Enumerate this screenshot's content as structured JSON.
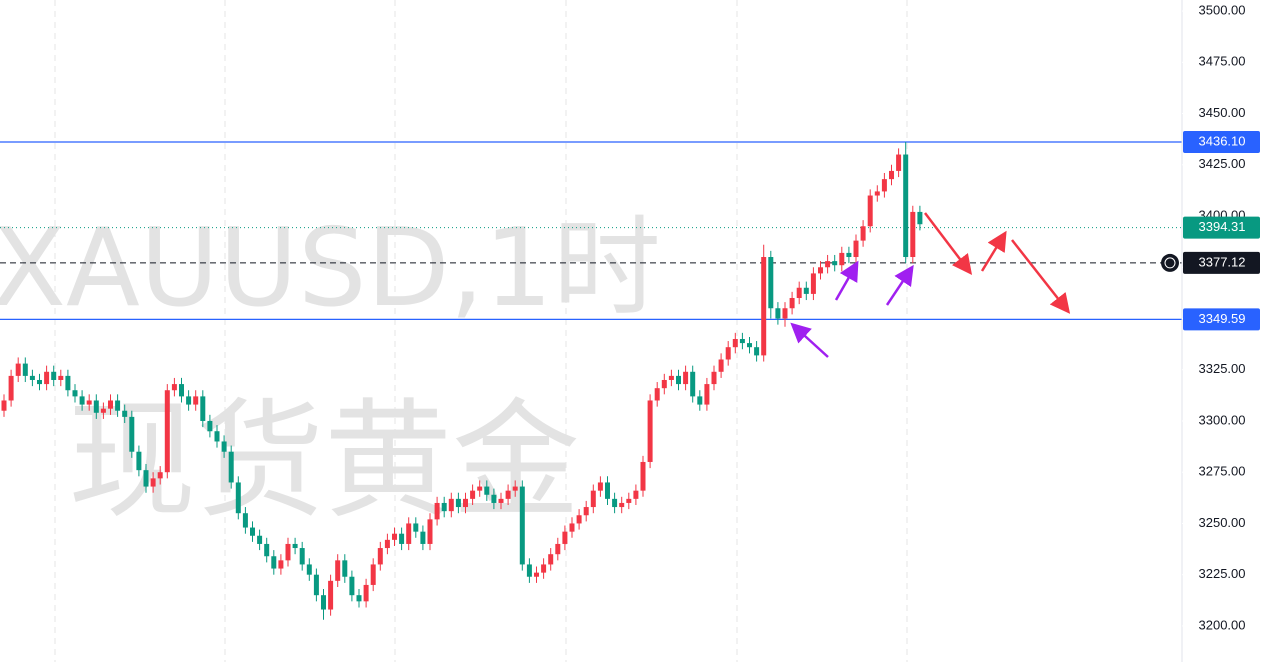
{
  "chart_data": {
    "type": "candlestick",
    "watermark": "XAUUSD,1时",
    "watermark_subtitle": "现货黄金",
    "up_color": "#f23645",
    "down_color": "#089981",
    "ylim": [
      3182.4,
      3505.4
    ],
    "yticks": [
      {
        "value": 3200,
        "label": "3200.00"
      },
      {
        "value": 3225,
        "label": "3225.00"
      },
      {
        "value": 3250,
        "label": "3250.00"
      },
      {
        "value": 3275,
        "label": "3275.00"
      },
      {
        "value": 3300,
        "label": "3300.00"
      },
      {
        "value": 3325,
        "label": "3325.00"
      },
      {
        "value": 3350,
        "label": "3350.00"
      },
      {
        "value": 3375,
        "label": "3375.00"
      },
      {
        "value": 3400,
        "label": "3400.00"
      },
      {
        "value": 3425,
        "label": "3425.00"
      },
      {
        "value": 3450,
        "label": "3450.00"
      },
      {
        "value": 3475,
        "label": "3475.00"
      },
      {
        "value": 3500,
        "label": "3500.00"
      }
    ],
    "grid": false,
    "price_lines": [
      {
        "value": 3436.1,
        "label": "3436.10",
        "color": "#2962ff",
        "style": "solid"
      },
      {
        "value": 3394.31,
        "label": "3394.31",
        "color": "#089981",
        "style": "dotted"
      },
      {
        "value": 3377.12,
        "label": "3377.12",
        "color": "#131722",
        "style": "dashed"
      },
      {
        "value": 3349.59,
        "label": "3349.59",
        "color": "#2962ff",
        "style": "solid"
      }
    ],
    "open": [
      3305,
      3310,
      3322,
      3328,
      3322,
      3320,
      3318,
      3324,
      3320,
      3322,
      3315,
      3312,
      3308,
      3310,
      3304,
      3306,
      3310,
      3305,
      3302,
      3285,
      3276,
      3268,
      3272,
      3275,
      3315,
      3318,
      3312,
      3308,
      3312,
      3300,
      3295,
      3290,
      3285,
      3270,
      3255,
      3248,
      3244,
      3240,
      3234,
      3228,
      3232,
      3240,
      3238,
      3230,
      3225,
      3215,
      3208,
      3222,
      3232,
      3224,
      3215,
      3212,
      3220,
      3230,
      3238,
      3242,
      3245,
      3240,
      3250,
      3246,
      3240,
      3252,
      3260,
      3256,
      3262,
      3258,
      3262,
      3266,
      3268,
      3264,
      3260,
      3262,
      3266,
      3268,
      3230,
      3224,
      3226,
      3230,
      3235,
      3240,
      3246,
      3250,
      3254,
      3258,
      3266,
      3270,
      3262,
      3258,
      3260,
      3262,
      3266,
      3280,
      3310,
      3316,
      3320,
      3322,
      3318,
      3324,
      3312,
      3308,
      3318,
      3324,
      3330,
      3336,
      3340,
      3338,
      3336,
      3332,
      3380,
      3355,
      3350,
      3355,
      3360,
      3365,
      3362,
      3372,
      3375,
      3378,
      3376,
      3382,
      3380,
      3388,
      3395,
      3410,
      3412,
      3418,
      3422,
      3430,
      3380,
      3402
    ],
    "high": [
      3313,
      3325,
      3331,
      3331,
      3325,
      3323,
      3327,
      3327,
      3325,
      3325,
      3318,
      3315,
      3313,
      3313,
      3309,
      3313,
      3313,
      3308,
      3305,
      3288,
      3279,
      3275,
      3278,
      3318,
      3321,
      3321,
      3315,
      3315,
      3315,
      3303,
      3298,
      3293,
      3288,
      3273,
      3258,
      3251,
      3247,
      3243,
      3237,
      3235,
      3243,
      3243,
      3241,
      3233,
      3228,
      3218,
      3225,
      3235,
      3235,
      3227,
      3218,
      3223,
      3233,
      3241,
      3245,
      3248,
      3248,
      3253,
      3253,
      3249,
      3255,
      3263,
      3263,
      3265,
      3265,
      3265,
      3269,
      3271,
      3271,
      3267,
      3265,
      3269,
      3271,
      3271,
      3233,
      3229,
      3233,
      3238,
      3243,
      3249,
      3253,
      3257,
      3261,
      3269,
      3273,
      3273,
      3265,
      3263,
      3265,
      3269,
      3283,
      3313,
      3319,
      3323,
      3325,
      3325,
      3327,
      3327,
      3315,
      3321,
      3327,
      3333,
      3339,
      3343,
      3343,
      3341,
      3339,
      3386,
      3383,
      3358,
      3358,
      3363,
      3368,
      3368,
      3375,
      3378,
      3381,
      3381,
      3385,
      3385,
      3391,
      3398,
      3413,
      3415,
      3421,
      3425,
      3433,
      3436.1,
      3405,
      3405
    ],
    "low": [
      3302,
      3307,
      3319,
      3319,
      3317,
      3315,
      3315,
      3317,
      3317,
      3312,
      3309,
      3305,
      3305,
      3301,
      3301,
      3303,
      3302,
      3299,
      3282,
      3273,
      3265,
      3265,
      3269,
      3272,
      3312,
      3309,
      3305,
      3305,
      3297,
      3292,
      3287,
      3282,
      3267,
      3252,
      3245,
      3241,
      3237,
      3231,
      3225,
      3225,
      3229,
      3235,
      3227,
      3222,
      3212,
      3203,
      3205,
      3219,
      3221,
      3212,
      3209,
      3209,
      3217,
      3227,
      3235,
      3239,
      3237,
      3237,
      3243,
      3237,
      3237,
      3249,
      3253,
      3253,
      3255,
      3255,
      3259,
      3263,
      3261,
      3257,
      3257,
      3259,
      3263,
      3227,
      3221,
      3221,
      3223,
      3227,
      3232,
      3237,
      3243,
      3247,
      3251,
      3255,
      3263,
      3259,
      3255,
      3255,
      3257,
      3259,
      3263,
      3277,
      3307,
      3313,
      3317,
      3315,
      3315,
      3309,
      3305,
      3305,
      3315,
      3321,
      3327,
      3333,
      3335,
      3333,
      3329,
      3329,
      3350,
      3347,
      3346,
      3352,
      3357,
      3359,
      3359,
      3369,
      3372,
      3373,
      3373,
      3377,
      3377,
      3385,
      3392,
      3407,
      3409,
      3415,
      3419,
      3377,
      3377,
      3393
    ],
    "close": [
      3310,
      3322,
      3328,
      3322,
      3320,
      3318,
      3324,
      3320,
      3322,
      3315,
      3312,
      3308,
      3310,
      3304,
      3306,
      3310,
      3305,
      3302,
      3285,
      3276,
      3268,
      3272,
      3275,
      3315,
      3318,
      3312,
      3308,
      3312,
      3300,
      3295,
      3290,
      3285,
      3270,
      3255,
      3248,
      3244,
      3240,
      3234,
      3228,
      3232,
      3240,
      3238,
      3230,
      3225,
      3215,
      3208,
      3222,
      3232,
      3224,
      3215,
      3212,
      3220,
      3230,
      3238,
      3242,
      3245,
      3240,
      3250,
      3246,
      3240,
      3252,
      3260,
      3256,
      3262,
      3258,
      3262,
      3266,
      3268,
      3264,
      3260,
      3262,
      3266,
      3268,
      3230,
      3224,
      3226,
      3230,
      3235,
      3240,
      3246,
      3250,
      3254,
      3258,
      3266,
      3270,
      3262,
      3258,
      3260,
      3262,
      3266,
      3280,
      3310,
      3316,
      3320,
      3322,
      3318,
      3324,
      3312,
      3308,
      3318,
      3324,
      3330,
      3336,
      3340,
      3338,
      3336,
      3332,
      3380,
      3355,
      3350,
      3355,
      3360,
      3365,
      3362,
      3372,
      3375,
      3378,
      3376,
      3382,
      3380,
      3388,
      3395,
      3410,
      3412,
      3418,
      3422,
      3430,
      3380,
      3402,
      3396
    ]
  }
}
